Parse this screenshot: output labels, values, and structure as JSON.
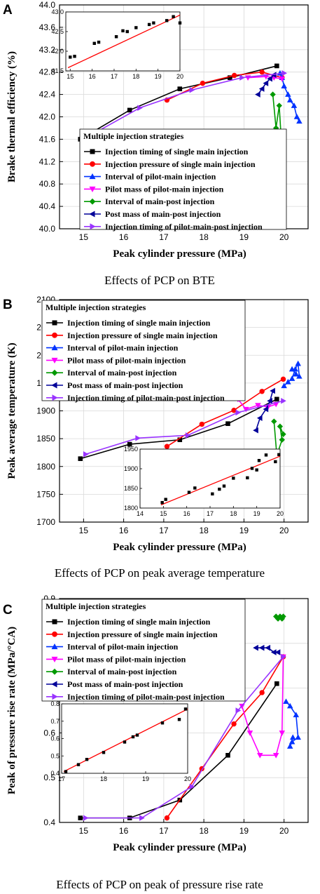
{
  "colors": {
    "Injection timing of  single main injection": "#000000",
    "Injection pressure of  single main injection": "#ff0000",
    "Interval of pilot-main injection": "#0033ff",
    "Pilot mass of pilot-main injection": "#ff00ff",
    "Interval of main-post injection": "#009900",
    "Post mass of main-post injection": "#000099",
    "Injection timing of pilot-main-post injection": "#9933ff",
    "fit": "#ff0000"
  },
  "chart_data": [
    {
      "type": "line",
      "panel": "A",
      "caption": "Effects of PCP on BTE",
      "xlabel": "Peak cylinder pressure (MPa)",
      "ylabel": "Brake thermal efficiency (%)",
      "xlim": [
        14.4,
        20.6
      ],
      "ylim": [
        40.0,
        44.0
      ],
      "xticks": [
        "15",
        "16",
        "17",
        "18",
        "19",
        "20"
      ],
      "yticks": [
        "40.0",
        "40.4",
        "40.8",
        "41.2",
        "41.6",
        "42.0",
        "42.4",
        "42.8",
        "43.2",
        "43.6",
        "44.0"
      ],
      "grid": true,
      "legend_title": "Multiple injection strategies",
      "legend_position": "bottom-center",
      "series": [
        {
          "name": "Injection timing of  single main injection",
          "marker": "square",
          "x": [
            14.92,
            16.15,
            17.4,
            18.65,
            19.82
          ],
          "y": [
            41.6,
            42.12,
            42.5,
            42.7,
            42.91
          ]
        },
        {
          "name": "Injection pressure of  single main injection",
          "marker": "circle",
          "x": [
            17.08,
            17.97,
            18.76,
            19.45,
            19.95
          ],
          "y": [
            42.3,
            42.6,
            42.74,
            42.8,
            42.7
          ]
        },
        {
          "name": "Interval of pilot-main injection",
          "marker": "triangle-up",
          "x": [
            19.9,
            19.95,
            20.0,
            20.1,
            20.15,
            20.25,
            20.32,
            20.38
          ],
          "y": [
            42.78,
            42.7,
            42.55,
            42.4,
            42.3,
            42.2,
            42.0,
            41.92
          ]
        },
        {
          "name": "Pilot mass of pilot-main injection",
          "marker": "triangle-down",
          "x": [
            19.1,
            19.55,
            19.75,
            19.95
          ],
          "y": [
            42.7,
            42.72,
            42.7,
            42.68
          ]
        },
        {
          "name": "Interval of main-post injection",
          "marker": "diamond",
          "x": [
            19.72,
            19.8,
            19.88,
            19.93,
            19.97
          ],
          "y": [
            42.4,
            41.8,
            42.2,
            41.6,
            41.2
          ]
        },
        {
          "name": "Post mass of main-post injection",
          "marker": "triangle-left",
          "x": [
            19.35,
            19.45,
            19.55,
            19.65,
            19.75
          ],
          "y": [
            42.4,
            42.5,
            42.6,
            42.68,
            42.75
          ]
        },
        {
          "name": "Injection timing of pilot-main-post injection",
          "marker": "triangle-right",
          "x": [
            15.05,
            16.4,
            17.7,
            18.95,
            20.0
          ],
          "y": [
            41.62,
            42.16,
            42.48,
            42.7,
            42.78
          ]
        }
      ],
      "inset": {
        "xlim": [
          14.8,
          20.0
        ],
        "ylim": [
          41.5,
          43.0
        ],
        "xticks": [
          "15",
          "16",
          "17",
          "18",
          "19",
          "20"
        ],
        "yticks": [
          "41.5",
          "42.0",
          "42.5",
          "43.0"
        ],
        "fit": {
          "x": [
            14.9,
            20.0
          ],
          "y": [
            41.58,
            42.92
          ]
        },
        "points": {
          "x": [
            15.0,
            15.2,
            16.1,
            16.3,
            17.1,
            17.4,
            17.6,
            18.0,
            18.6,
            18.8,
            19.4,
            19.7,
            20.0
          ],
          "y": [
            41.85,
            41.87,
            42.2,
            42.23,
            42.37,
            42.52,
            42.5,
            42.6,
            42.68,
            42.72,
            42.78,
            42.88,
            42.72
          ]
        }
      }
    },
    {
      "type": "line",
      "panel": "B",
      "caption": "Effects of PCP on peak average temperature",
      "xlabel": "Peak cylinder pressure (MPa)",
      "ylabel": "Peak average temperature (K)",
      "xlim": [
        14.4,
        20.6
      ],
      "ylim": [
        1700,
        2100
      ],
      "xticks": [
        "15",
        "16",
        "17",
        "18",
        "19",
        "20"
      ],
      "yticks": [
        "1700",
        "1750",
        "1800",
        "1850",
        "1900",
        "1950",
        "2000",
        "2050",
        "2100"
      ],
      "grid": true,
      "legend_title": "Multiple injection strategies",
      "legend_position": "top-left",
      "series": [
        {
          "name": "Injection timing of  single main injection",
          "marker": "square",
          "x": [
            14.92,
            16.15,
            17.4,
            18.6,
            19.82
          ],
          "y": [
            1814,
            1840,
            1848,
            1877,
            1921
          ]
        },
        {
          "name": "Injection pressure of  single main injection",
          "marker": "circle",
          "x": [
            17.08,
            17.95,
            18.75,
            19.45,
            19.98
          ],
          "y": [
            1836,
            1876,
            1901,
            1935,
            1957
          ]
        },
        {
          "name": "Interval of pilot-main injection",
          "marker": "triangle-up",
          "x": [
            20.0,
            20.1,
            20.2,
            20.28,
            20.35,
            20.38,
            20.3,
            20.2
          ],
          "y": [
            1945,
            1952,
            1958,
            1975,
            1985,
            1962,
            1966,
            1975
          ]
        },
        {
          "name": "Pilot mass of pilot-main injection",
          "marker": "triangle-down",
          "x": [
            18.85,
            19.05,
            19.35,
            19.6,
            19.8
          ],
          "y": [
            1921,
            1903,
            1910,
            1907,
            1912
          ]
        },
        {
          "name": "Interval of main-post injection",
          "marker": "diamond",
          "x": [
            19.75,
            19.82,
            19.95,
            19.9,
            19.98
          ],
          "y": [
            1881,
            1820,
            1848,
            1872,
            1858
          ]
        },
        {
          "name": "Post mass of main-post injection",
          "marker": "triangle-left",
          "x": [
            19.3,
            19.4,
            19.55,
            19.65,
            19.72
          ],
          "y": [
            1865,
            1887,
            1903,
            1918,
            1936
          ]
        },
        {
          "name": "Injection timing of pilot-main-post injection",
          "marker": "triangle-right",
          "x": [
            15.05,
            16.35,
            17.6,
            18.85,
            19.98
          ],
          "y": [
            1822,
            1851,
            1856,
            1897,
            1918
          ]
        }
      ],
      "inset": {
        "xlim": [
          14.0,
          20.0
        ],
        "ylim": [
          1800,
          1950
        ],
        "xticks": [
          "14",
          "15",
          "16",
          "17",
          "18",
          "19",
          "20"
        ],
        "yticks": [
          "1800",
          "1850",
          "1900",
          "1950"
        ],
        "fit": {
          "x": [
            14.9,
            20.0
          ],
          "y": [
            1808,
            1932
          ]
        },
        "points": {
          "x": [
            14.95,
            15.1,
            16.1,
            16.35,
            17.1,
            17.4,
            17.6,
            18.0,
            18.6,
            18.8,
            19.0,
            19.1,
            19.4,
            19.8,
            19.95
          ],
          "y": [
            1814,
            1822,
            1840,
            1851,
            1836,
            1848,
            1856,
            1876,
            1877,
            1901,
            1897,
            1921,
            1935,
            1918,
            1936
          ]
        }
      }
    },
    {
      "type": "line",
      "panel": "C",
      "caption": "Effects of PCP on peak of pressure rise rate",
      "xlabel": "Peak cylinder pressure (MPa)",
      "ylabel": "Peak of pressure rise rate (MPa/°CA)",
      "xlim": [
        14.4,
        20.6
      ],
      "ylim": [
        0.4,
        0.9
      ],
      "xticks": [
        "15",
        "16",
        "17",
        "18",
        "19",
        "20"
      ],
      "yticks": [
        "0.4",
        "0.5",
        "0.6",
        "0.7",
        "0.8",
        "0.9"
      ],
      "grid": true,
      "legend_title": "Multiple injection strategies",
      "legend_position": "top-left",
      "series": [
        {
          "name": "Injection timing of  single main injection",
          "marker": "square",
          "x": [
            14.92,
            16.15,
            17.4,
            18.6,
            19.82
          ],
          "y": [
            0.41,
            0.41,
            0.45,
            0.55,
            0.71
          ]
        },
        {
          "name": "Injection pressure of  single main injection",
          "marker": "circle",
          "x": [
            17.08,
            17.95,
            18.75,
            19.45,
            19.98
          ],
          "y": [
            0.41,
            0.52,
            0.62,
            0.69,
            0.77
          ]
        },
        {
          "name": "Interval of pilot-main injection",
          "marker": "triangle-up",
          "x": [
            20.05,
            20.15,
            20.3,
            20.35,
            20.2,
            20.15,
            20.22
          ],
          "y": [
            0.67,
            0.66,
            0.64,
            0.59,
            0.58,
            0.57,
            0.59
          ]
        },
        {
          "name": "Pilot mass of pilot-main injection",
          "marker": "triangle-down",
          "x": [
            18.95,
            19.15,
            19.4,
            19.8,
            19.95,
            19.98
          ],
          "y": [
            0.66,
            0.6,
            0.55,
            0.55,
            0.6,
            0.77
          ]
        },
        {
          "name": "Interval of main-post injection",
          "marker": "diamond",
          "x": [
            19.8,
            19.85,
            19.9,
            19.95,
            19.98
          ],
          "y": [
            0.86,
            0.855,
            0.86,
            0.855,
            0.86
          ]
        },
        {
          "name": "Post mass of main-post injection",
          "marker": "triangle-left",
          "x": [
            19.3,
            19.45,
            19.6,
            19.75,
            19.85
          ],
          "y": [
            0.79,
            0.79,
            0.79,
            0.78,
            0.78
          ]
        },
        {
          "name": "Injection timing of pilot-main-post injection",
          "marker": "triangle-right",
          "x": [
            15.05,
            16.45,
            17.7,
            18.85,
            19.98
          ],
          "y": [
            0.41,
            0.41,
            0.48,
            0.65,
            0.77
          ]
        }
      ],
      "inset": {
        "xlim": [
          17.0,
          20.0
        ],
        "ylim": [
          0.4,
          0.8
        ],
        "xticks": [
          "17",
          "18",
          "19",
          "20"
        ],
        "yticks": [
          "0.4",
          "0.5",
          "0.6",
          "0.7",
          "0.8"
        ],
        "fit": {
          "x": [
            17.05,
            20.0
          ],
          "y": [
            0.41,
            0.77
          ]
        },
        "points": {
          "x": [
            17.1,
            17.4,
            17.6,
            18.0,
            18.5,
            18.7,
            18.8,
            19.4,
            19.8,
            19.95
          ],
          "y": [
            0.41,
            0.45,
            0.48,
            0.52,
            0.58,
            0.61,
            0.62,
            0.69,
            0.71,
            0.77
          ]
        }
      }
    }
  ]
}
